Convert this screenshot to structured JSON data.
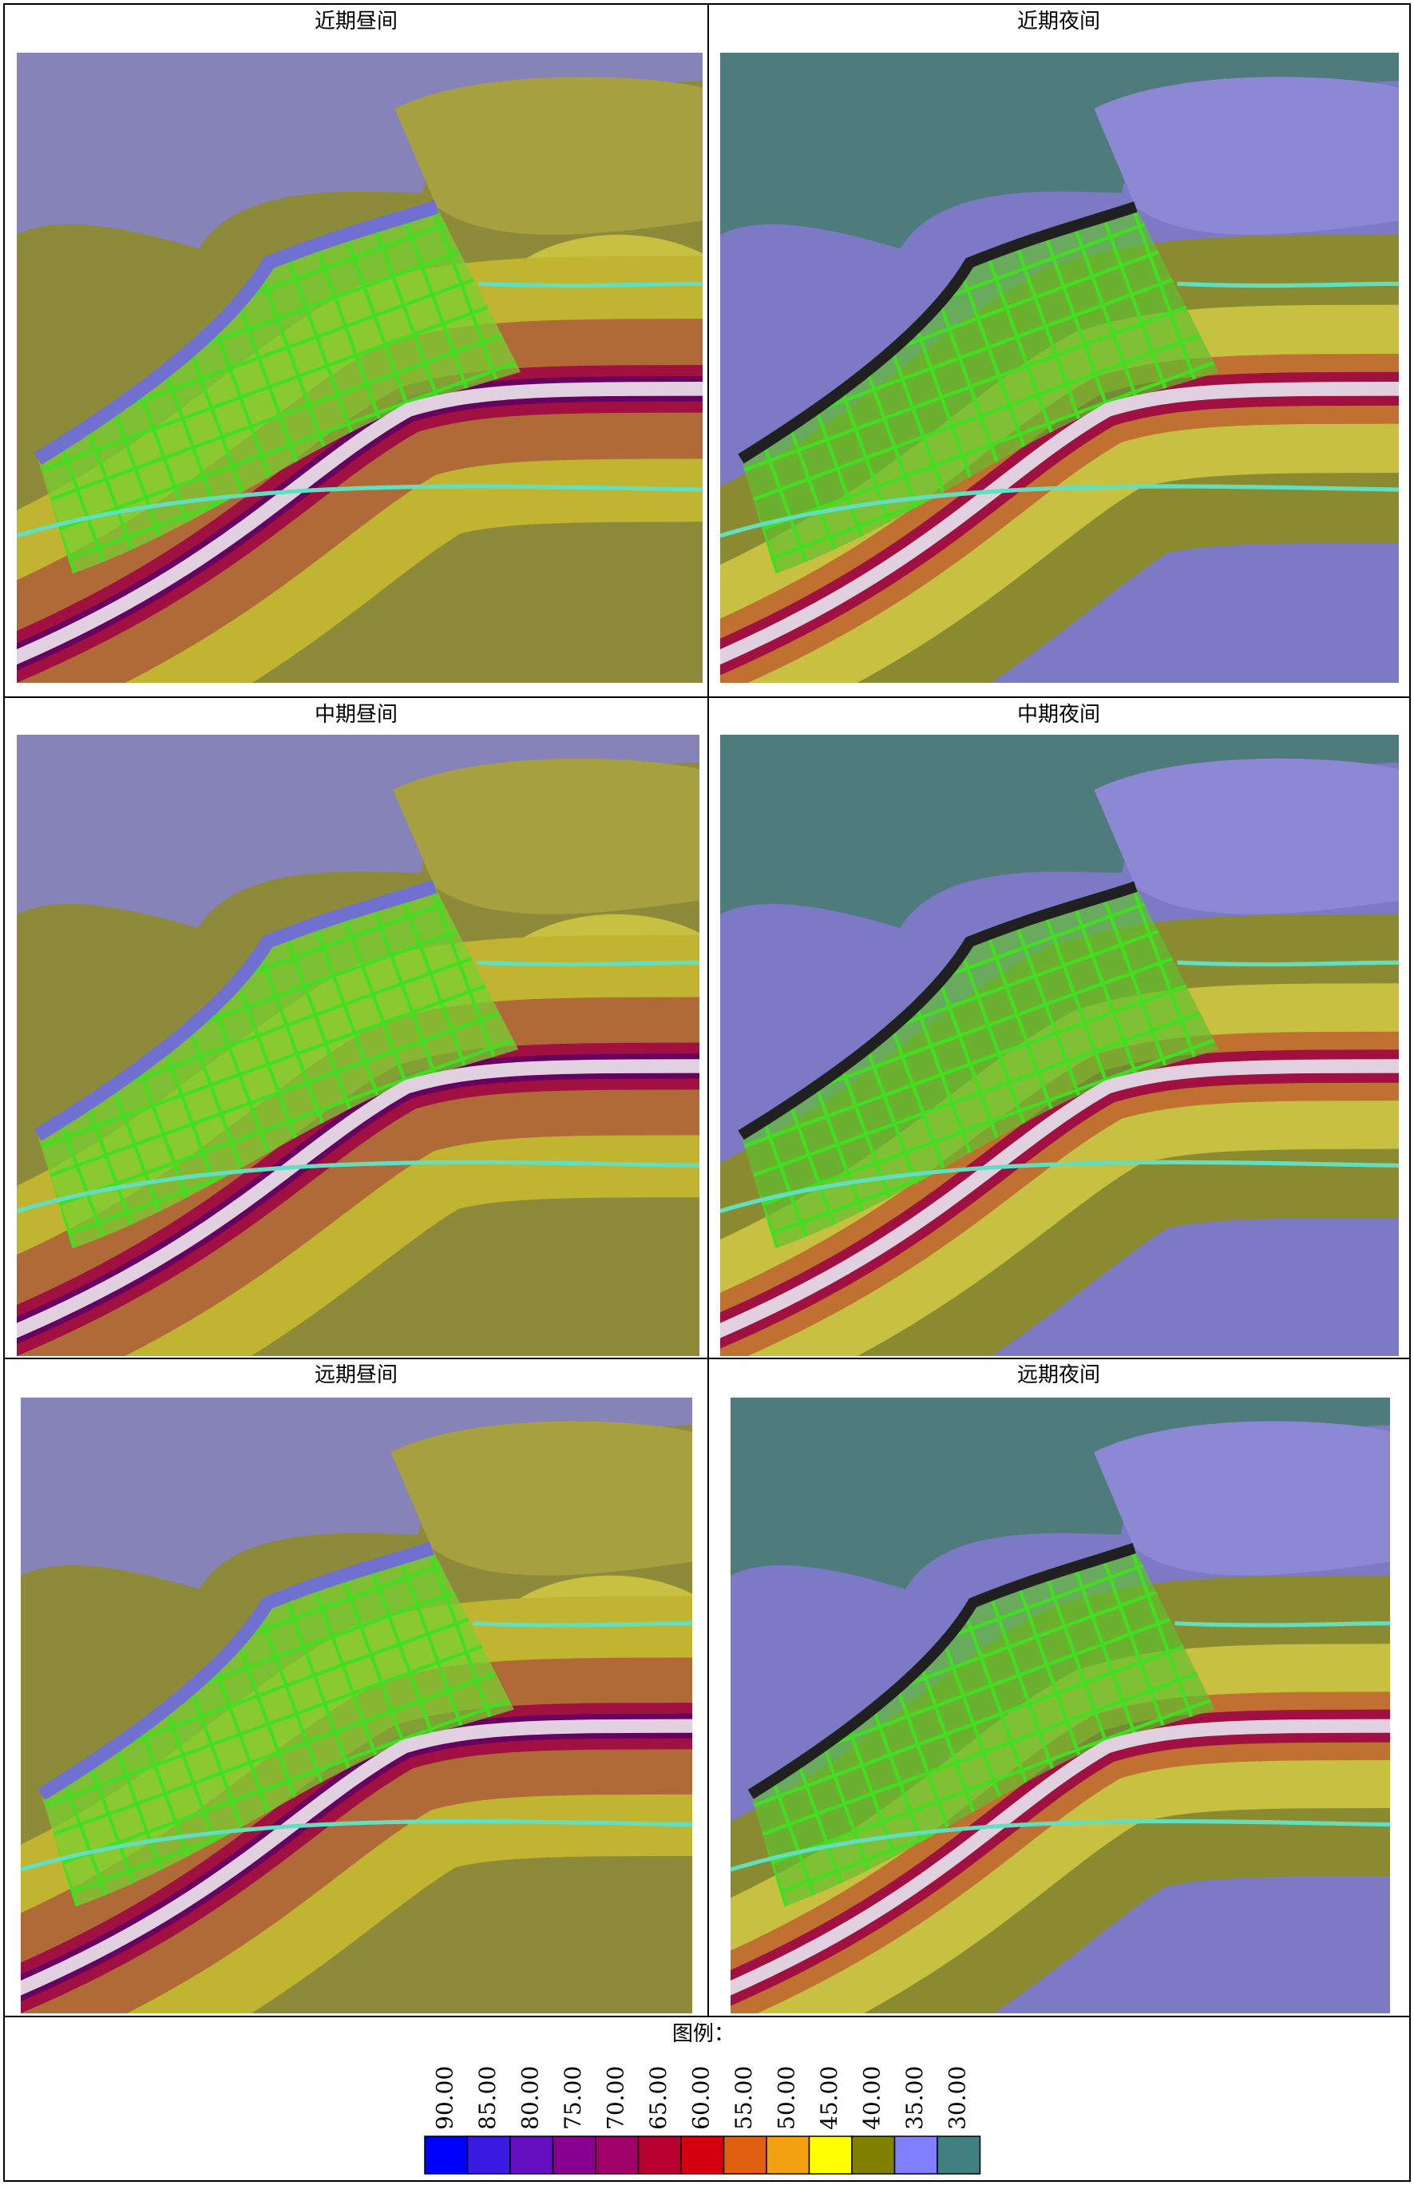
{
  "panels": [
    {
      "title": "近期昼间"
    },
    {
      "title": "近期夜间"
    },
    {
      "title": "中期昼间"
    },
    {
      "title": "中期夜间"
    },
    {
      "title": "远期昼间"
    },
    {
      "title": "远期夜间"
    }
  ],
  "legend": {
    "title": "图例：",
    "items": [
      {
        "label": "90.00",
        "color": "#0000ff"
      },
      {
        "label": "85.00",
        "color": "#3a1ae0"
      },
      {
        "label": "80.00",
        "color": "#6410c0"
      },
      {
        "label": "75.00",
        "color": "#880090"
      },
      {
        "label": "70.00",
        "color": "#a0006a"
      },
      {
        "label": "65.00",
        "color": "#b80030"
      },
      {
        "label": "60.00",
        "color": "#d40010"
      },
      {
        "label": "55.00",
        "color": "#e06010"
      },
      {
        "label": "50.00",
        "color": "#f0a010"
      },
      {
        "label": "45.00",
        "color": "#ffff00"
      },
      {
        "label": "40.00",
        "color": "#808000"
      },
      {
        "label": "35.00",
        "color": "#8080ff"
      },
      {
        "label": "30.00",
        "color": "#408080"
      }
    ]
  }
}
